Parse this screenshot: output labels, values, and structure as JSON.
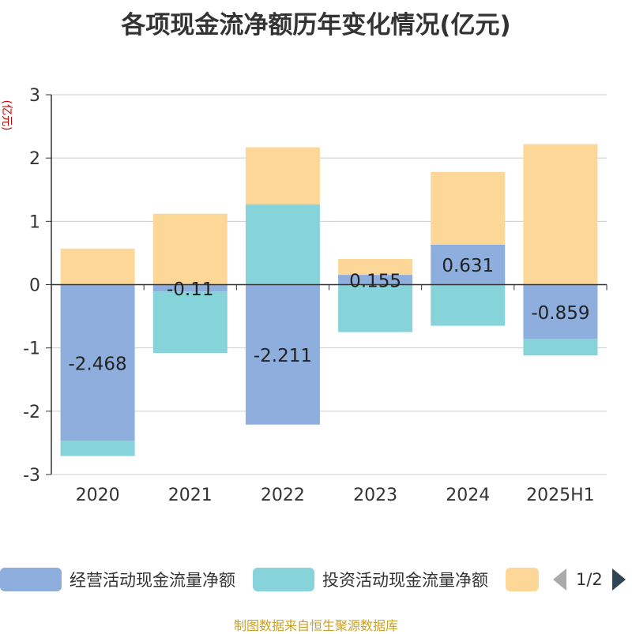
{
  "title": "各项现金流净额历年变化情况(亿元)",
  "unit_label": "(亿元)",
  "legend": {
    "items": [
      {
        "label": "经营活动现金流量净额",
        "color": "#8eaedd"
      },
      {
        "label": "投资活动现金流量净额",
        "color": "#86d4d9"
      },
      {
        "label": "",
        "color": "#fdd797"
      }
    ],
    "page": "1/2"
  },
  "source": "制图数据来自恒生聚源数据库",
  "chart_data": {
    "type": "bar",
    "stacked": true,
    "categories": [
      "2020",
      "2021",
      "2022",
      "2023",
      "2024",
      "2025H1"
    ],
    "series": [
      {
        "name": "经营活动现金流量净额",
        "color": "#8eaedd",
        "values": [
          -2.468,
          -0.11,
          -2.211,
          0.155,
          0.631,
          -0.859
        ],
        "labels": [
          "-2.468",
          "-0.11",
          "-2.211",
          "0.155",
          "0.631",
          "-0.859"
        ]
      },
      {
        "name": "投资活动现金流量净额",
        "color": "#86d4d9",
        "values": [
          -0.24,
          -0.97,
          1.27,
          -0.75,
          -0.65,
          -0.26
        ]
      },
      {
        "name": "",
        "color": "#fdd797",
        "values": [
          0.57,
          1.12,
          0.9,
          0.25,
          1.15,
          2.22
        ]
      }
    ],
    "ylim": [
      -3,
      3
    ],
    "yticks": [
      3,
      2,
      1,
      0,
      -1,
      -2,
      -3
    ],
    "ylabel": "(亿元)",
    "grid": true
  }
}
